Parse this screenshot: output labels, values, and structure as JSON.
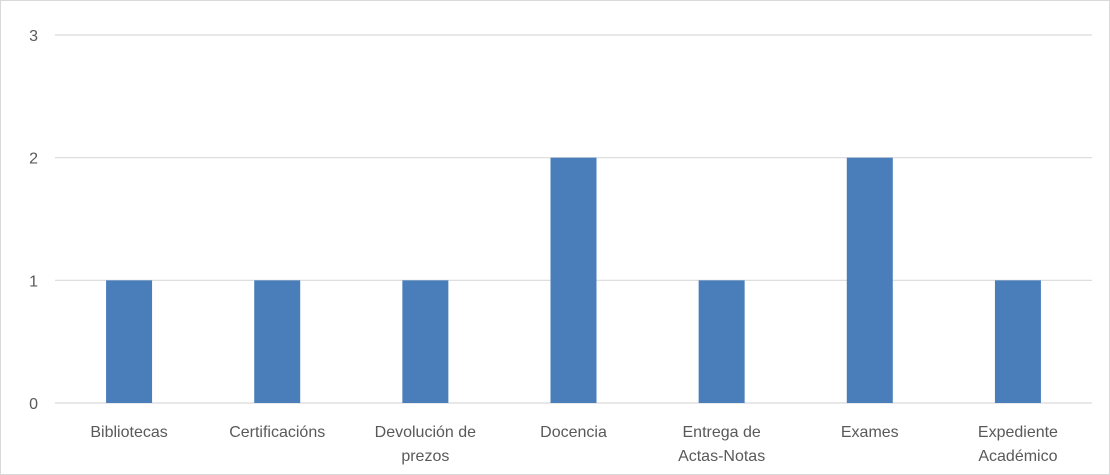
{
  "chart_data": {
    "type": "bar",
    "title": "",
    "xlabel": "",
    "ylabel": "",
    "categories": [
      "Bibliotecas",
      "Certificacións",
      "Devolución de prezos",
      "Docencia",
      "Entrega de Actas-Notas",
      "Exames",
      "Expediente Académico"
    ],
    "category_lines": [
      [
        "Bibliotecas"
      ],
      [
        "Certificacións"
      ],
      [
        "Devolución de",
        "prezos"
      ],
      [
        "Docencia"
      ],
      [
        "Entrega de",
        "Actas-Notas"
      ],
      [
        "Exames"
      ],
      [
        "Expediente",
        "Académico"
      ]
    ],
    "values": [
      1,
      1,
      1,
      2,
      1,
      2,
      1
    ],
    "ylim": [
      0,
      3
    ],
    "yticks": [
      0,
      1,
      2,
      3
    ],
    "grid": true,
    "legend": "none",
    "bar_color": "#4a7ebb",
    "grid_color": "#d9d9d9",
    "text_color": "#595959"
  }
}
